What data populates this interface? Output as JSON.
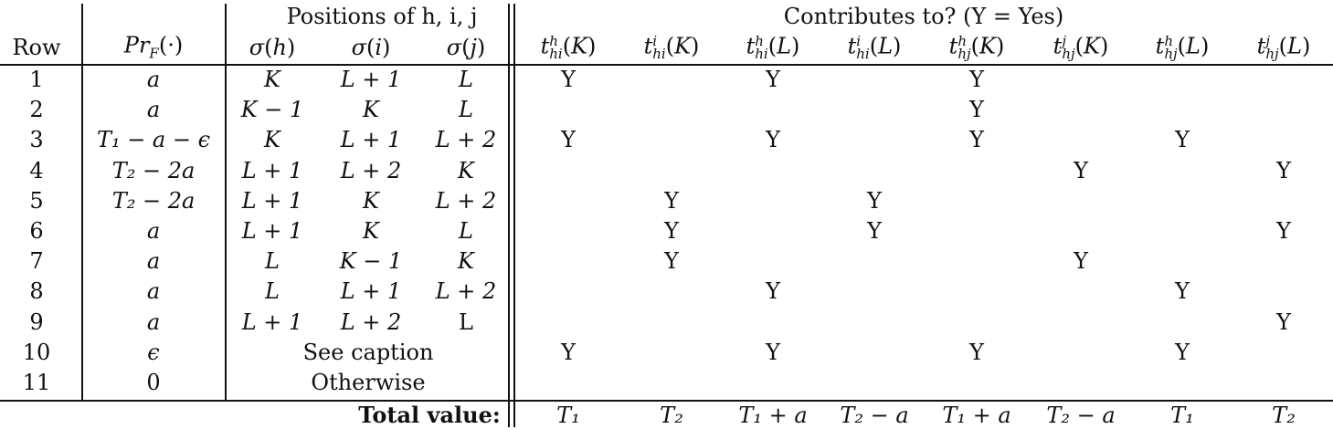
{
  "table": {
    "group_positions": "Positions of h, i, j",
    "group_contrib": "Contributes to? (Y = Yes)",
    "headers": [
      "Row",
      "Pr_F(·)",
      "σ(h)",
      "σ(i)",
      "σ(j)",
      "t^h_hi(K)",
      "t^i_hi(K)",
      "t^h_hi(L)",
      "t^i_hi(L)",
      "t^h_hj(K)",
      "t^j_hj(K)",
      "t^h_hj(L)",
      "t^j_hj(L)"
    ],
    "rows": [
      {
        "row": "1",
        "pr": "a",
        "sh": "K",
        "si": "L + 1",
        "sj": "L",
        "y": [
          "Y",
          "",
          "Y",
          "",
          "Y",
          "",
          "",
          ""
        ]
      },
      {
        "row": "2",
        "pr": "a",
        "sh": "K − 1",
        "si": "K",
        "sj": "L",
        "y": [
          "",
          "",
          "",
          "",
          "Y",
          "",
          "",
          ""
        ]
      },
      {
        "row": "3",
        "pr": "T₁ − a − ϵ",
        "sh": "K",
        "si": "L + 1",
        "sj": "L + 2",
        "y": [
          "Y",
          "",
          "Y",
          "",
          "Y",
          "",
          "Y",
          ""
        ]
      },
      {
        "row": "4",
        "pr": "T₂ − 2a",
        "sh": "L + 1",
        "si": "L + 2",
        "sj": "K",
        "y": [
          "",
          "",
          "",
          "",
          "",
          "Y",
          "",
          "Y"
        ]
      },
      {
        "row": "5",
        "pr": "T₂ − 2a",
        "sh": "L + 1",
        "si": "K",
        "sj": "L + 2",
        "y": [
          "",
          "Y",
          "",
          "Y",
          "",
          "",
          "",
          ""
        ]
      },
      {
        "row": "6",
        "pr": "a",
        "sh": "L + 1",
        "si": "K",
        "sj": "L",
        "y": [
          "",
          "Y",
          "",
          "Y",
          "",
          "",
          "",
          "Y"
        ]
      },
      {
        "row": "7",
        "pr": "a",
        "sh": "L",
        "si": "K − 1",
        "sj": "K",
        "y": [
          "",
          "Y",
          "",
          "",
          "",
          "Y",
          "",
          ""
        ]
      },
      {
        "row": "8",
        "pr": "a",
        "sh": "L",
        "si": "L + 1",
        "sj": "L + 2",
        "y": [
          "",
          "",
          "Y",
          "",
          "",
          "",
          "Y",
          ""
        ]
      },
      {
        "row": "9",
        "pr": "a",
        "sh": "L + 1",
        "si": "L + 2",
        "sj": "L",
        "y": [
          "",
          "",
          "",
          "",
          "",
          "",
          "",
          "Y"
        ]
      },
      {
        "row": "10",
        "pr": "ϵ",
        "merged": "See caption",
        "y": [
          "Y",
          "",
          "Y",
          "",
          "Y",
          "",
          "Y",
          ""
        ]
      },
      {
        "row": "11",
        "pr": "0",
        "merged": "Otherwise",
        "y": [
          "",
          "",
          "",
          "",
          "",
          "",
          "",
          ""
        ]
      }
    ],
    "total_label": "Total value:",
    "totals": [
      "T₁",
      "T₂",
      "T₁ + a",
      "T₂ − a",
      "T₁ + a",
      "T₂ − a",
      "T₁",
      "T₂"
    ]
  }
}
